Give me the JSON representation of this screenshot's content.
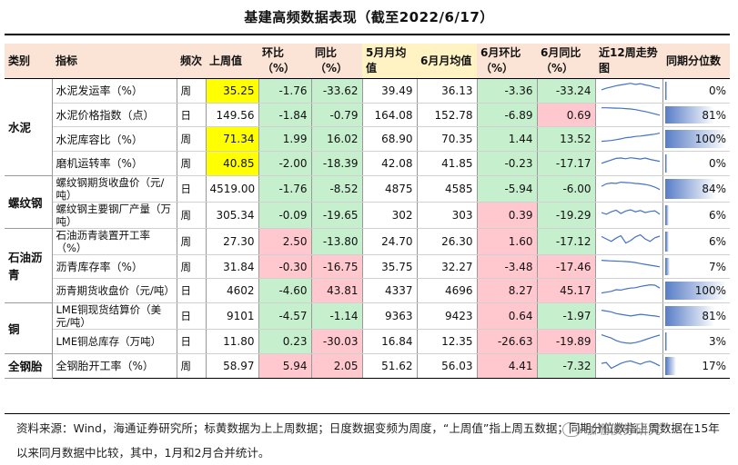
{
  "title": "基建高频数据表现（截至2022/6/17）",
  "headers": [
    "类别",
    "指标",
    "频次",
    "上周值",
    "环比（%）",
    "同比（%）",
    "5月月均值",
    "6月月均值",
    "6月环比（%）",
    "6月同比（%）",
    "近12周走势图",
    "同期分位数"
  ],
  "rows": [
    {
      "cat": "水泥",
      "name": "水泥发运率（%）",
      "freq": "周",
      "last": "35.25",
      "hb": "-1.76",
      "tb": "-33.62",
      "may": "39.49",
      "jun": "36.13",
      "jhb": "-3.36",
      "jtb": "-33.24",
      "pct": "0%",
      "pct_val": 0,
      "spark": [
        0.45,
        0.55,
        0.62,
        0.7,
        0.75,
        0.8,
        0.85,
        0.78,
        0.83,
        0.75,
        0.7,
        0.6,
        0.55
      ],
      "hl": true,
      "c_hb": "g",
      "c_tb": "g",
      "c_jhb": "g",
      "c_jtb": "g"
    },
    {
      "cat": "",
      "name": "水泥价格指数（点）",
      "freq": "日",
      "last": "149.56",
      "hb": "-1.84",
      "tb": "-0.79",
      "may": "164.08",
      "jun": "152.78",
      "jhb": "-6.89",
      "jtb": "0.69",
      "pct": "81%",
      "pct_val": 81,
      "spark": [
        0.85,
        0.85,
        0.84,
        0.83,
        0.82,
        0.8,
        0.78,
        0.74,
        0.68,
        0.62,
        0.55,
        0.48,
        0.4
      ],
      "hl": false,
      "c_hb": "g",
      "c_tb": "g",
      "c_jhb": "g",
      "c_jtb": "r"
    },
    {
      "cat": "",
      "name": "水泥库容比（%）",
      "freq": "周",
      "last": "71.34",
      "hb": "1.99",
      "tb": "16.02",
      "may": "68.90",
      "jun": "70.35",
      "jhb": "1.44",
      "jtb": "13.52",
      "pct": "100%",
      "pct_val": 100,
      "spark": [
        0.3,
        0.32,
        0.35,
        0.4,
        0.45,
        0.52,
        0.55,
        0.6,
        0.62,
        0.66,
        0.7,
        0.74,
        0.8
      ],
      "hl": true,
      "c_hb": "g",
      "c_tb": "g",
      "c_jhb": "g",
      "c_jtb": "g"
    },
    {
      "cat": "",
      "name": "磨机运转率（%）",
      "freq": "周",
      "last": "40.85",
      "hb": "-2.00",
      "tb": "-18.39",
      "may": "42.08",
      "jun": "41.85",
      "jhb": "-0.23",
      "jtb": "-17.17",
      "pct": "0%",
      "pct_val": 0,
      "spark": [
        0.4,
        0.5,
        0.6,
        0.7,
        0.72,
        0.68,
        0.74,
        0.7,
        0.66,
        0.72,
        0.64,
        0.58,
        0.52
      ],
      "hl": true,
      "c_hb": "g",
      "c_tb": "g",
      "c_jhb": "g",
      "c_jtb": "g"
    },
    {
      "cat": "螺纹钢",
      "name": "螺纹钢期货收盘价（元/吨）",
      "freq": "日",
      "last": "4519.00",
      "hb": "-1.76",
      "tb": "-8.52",
      "may": "4875",
      "jun": "4585",
      "jhb": "-5.94",
      "jtb": "-6.00",
      "pct": "84%",
      "pct_val": 84,
      "spark": [
        0.55,
        0.7,
        0.75,
        0.72,
        0.8,
        0.78,
        0.76,
        0.72,
        0.7,
        0.66,
        0.6,
        0.5,
        0.35
      ],
      "hl": false,
      "c_hb": "g",
      "c_tb": "g",
      "c_jhb": "g",
      "c_jtb": "g"
    },
    {
      "cat": "",
      "name": "螺纹钢主要钢厂产量（万吨）",
      "freq": "周",
      "last": "305.34",
      "hb": "-0.09",
      "tb": "-19.65",
      "may": "302",
      "jun": "303",
      "jhb": "0.39",
      "jtb": "-19.29",
      "pct": "6%",
      "pct_val": 6,
      "spark": [
        0.55,
        0.45,
        0.6,
        0.7,
        0.5,
        0.65,
        0.72,
        0.6,
        0.68,
        0.55,
        0.62,
        0.66,
        0.45
      ],
      "hl": false,
      "c_hb": "g",
      "c_tb": "g",
      "c_jhb": "r",
      "c_jtb": "g"
    },
    {
      "cat": "石油沥青",
      "name": "石油沥青装置开工率（%）",
      "freq": "周",
      "last": "27.30",
      "hb": "2.50",
      "tb": "-13.80",
      "may": "24.70",
      "jun": "26.30",
      "jhb": "1.60",
      "jtb": "-17.12",
      "pct": "6%",
      "pct_val": 6,
      "spark": [
        0.7,
        0.55,
        0.4,
        0.6,
        0.75,
        0.3,
        0.45,
        0.68,
        0.8,
        0.55,
        0.4,
        0.62,
        0.72
      ],
      "hl": false,
      "c_hb": "r",
      "c_tb": "g",
      "c_jhb": "r",
      "c_jtb": "g"
    },
    {
      "cat": "",
      "name": "沥青库存率（%）",
      "freq": "周",
      "last": "31.84",
      "hb": "-0.30",
      "tb": "-16.75",
      "may": "35.75",
      "jun": "32.27",
      "jhb": "-3.48",
      "jtb": "-17.46",
      "pct": "7%",
      "pct_val": 7,
      "spark": [
        0.8,
        0.78,
        0.76,
        0.75,
        0.74,
        0.72,
        0.7,
        0.66,
        0.6,
        0.55,
        0.5,
        0.45,
        0.4
      ],
      "hl": false,
      "c_hb": "r",
      "c_tb": "r",
      "c_jhb": "r",
      "c_jtb": "r"
    },
    {
      "cat": "",
      "name": "沥青期货收盘价（元/吨）",
      "freq": "日",
      "last": "4602",
      "hb": "-4.60",
      "tb": "43.81",
      "may": "4337",
      "jun": "4696",
      "jhb": "8.27",
      "jtb": "45.17",
      "pct": "100%",
      "pct_val": 100,
      "spark": [
        0.3,
        0.35,
        0.4,
        0.5,
        0.48,
        0.55,
        0.6,
        0.62,
        0.7,
        0.75,
        0.8,
        0.78,
        0.6
      ],
      "hl": false,
      "c_hb": "g",
      "c_tb": "r",
      "c_jhb": "r",
      "c_jtb": "r"
    },
    {
      "cat": "铜",
      "name": "LME铜现货结算价（美元/吨）",
      "freq": "日",
      "last": "9101",
      "hb": "-4.57",
      "tb": "-1.14",
      "may": "9363",
      "jun": "9423",
      "jhb": "0.64",
      "jtb": "-1.97",
      "pct": "81%",
      "pct_val": 81,
      "spark": [
        0.8,
        0.75,
        0.7,
        0.6,
        0.55,
        0.5,
        0.45,
        0.5,
        0.55,
        0.52,
        0.48,
        0.45,
        0.4
      ],
      "hl": false,
      "c_hb": "g",
      "c_tb": "g",
      "c_jhb": "r",
      "c_jtb": "g"
    },
    {
      "cat": "",
      "name": "LME铜总库存（万吨）",
      "freq": "日",
      "last": "11.80",
      "hb": "0.23",
      "tb": "-30.03",
      "may": "16.84",
      "jun": "12.35",
      "jhb": "-26.63",
      "jtb": "-19.89",
      "pct": "3%",
      "pct_val": 3,
      "spark": [
        0.8,
        0.7,
        0.6,
        0.45,
        0.35,
        0.3,
        0.28,
        0.32,
        0.4,
        0.5,
        0.6,
        0.7,
        0.78
      ],
      "hl": false,
      "c_hb": "g",
      "c_tb": "r",
      "c_jhb": "r",
      "c_jtb": "r"
    },
    {
      "cat": "全钢胎",
      "name": "全钢胎开工率（%）",
      "freq": "周",
      "last": "58.97",
      "hb": "5.94",
      "tb": "2.05",
      "may": "51.62",
      "jun": "56.03",
      "jhb": "4.41",
      "jtb": "-7.32",
      "pct": "17%",
      "pct_val": 17,
      "spark": [
        0.55,
        0.6,
        0.25,
        0.4,
        0.55,
        0.65,
        0.7,
        0.6,
        0.5,
        0.62,
        0.68,
        0.55,
        0.4
      ],
      "hl": false,
      "c_hb": "r",
      "c_tb": "r",
      "c_jhb": "r",
      "c_jtb": "g"
    }
  ],
  "note": "资料来源：Wind，海通证券研究所；标黄数据为上上周数据；日度数据变频为周度，“上周值”指上周五数据；同期分位数指上周数据在15年以来同月数据中比较，其中，1月和2月合并统计。",
  "watermark": "珈珊债券研究",
  "colors": {
    "header_bg": "#fbe4d5",
    "highlight": "#ffff00",
    "green": "#c6efce",
    "red": "#ffc7ce",
    "bar": "#5b7fc7"
  }
}
